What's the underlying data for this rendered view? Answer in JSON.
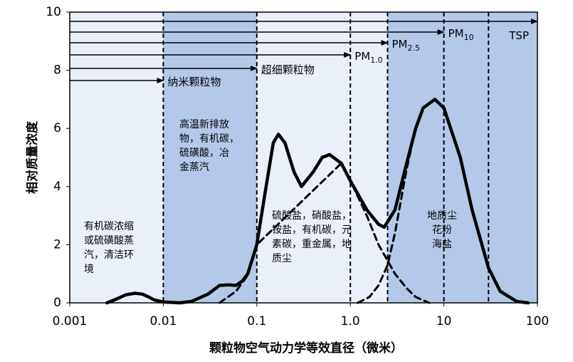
{
  "chart_data": {
    "type": "line",
    "xlabel": "颗粒物空气动力学等效直径（微米）",
    "ylabel": "相对质量浓度",
    "xscale": "log",
    "xlim": [
      0.001,
      100
    ],
    "ylim": [
      0,
      10
    ],
    "xticks": [
      0.001,
      0.01,
      0.1,
      {
        "value": 1,
        "label": "1.0"
      },
      10,
      100
    ],
    "yticks": [
      0,
      2,
      4,
      6,
      8,
      10
    ],
    "background_color": "#eaf0f9",
    "shaded": [
      {
        "from": 0.01,
        "to": 0.1,
        "color": "#b4c9ea"
      },
      {
        "from": 2.5,
        "to": 100,
        "color": "#b4c9ea"
      }
    ],
    "boundaries": [
      0.01,
      0.1,
      1,
      2.5,
      10,
      30
    ],
    "size_classes": [
      {
        "name": "纳米颗粒物",
        "upper": 0.01
      },
      {
        "name": "超细颗粒物",
        "upper": 0.1
      },
      {
        "name": "PM",
        "sub": "1.0",
        "upper": 1
      },
      {
        "name": "PM",
        "sub": "2.5",
        "upper": 2.5
      },
      {
        "name": "PM",
        "sub": "10",
        "upper": 10
      },
      {
        "name": "TSP",
        "upper": 100
      }
    ],
    "annotations": [
      [
        "有机碳浓缩",
        "或硫磺酸蒸",
        "汽，清洁环",
        "境"
      ],
      [
        "高温新排放",
        "物，有机碳，",
        "硫磺酸，冶",
        "金蒸汽"
      ],
      [
        "硫酸盐，硝酸盐，",
        "铵盐，有机碳，元",
        "素碳，重金属，地",
        "质尘"
      ],
      [
        "地质尘",
        "花粉",
        "海盐"
      ]
    ],
    "series": [
      {
        "color": "#000000",
        "style": "solid",
        "x": [
          0.0025,
          0.003,
          0.004,
          0.005,
          0.006,
          0.007,
          0.008,
          0.01,
          0.015,
          0.02,
          0.03,
          0.04,
          0.05,
          0.06,
          0.07,
          0.08,
          0.1,
          0.12,
          0.15,
          0.17,
          0.2,
          0.25,
          0.3,
          0.4,
          0.5,
          0.6,
          0.8,
          1,
          1.5,
          2,
          2.3,
          3,
          4,
          5,
          6,
          8,
          10,
          15,
          20,
          30,
          40,
          60,
          80
        ],
        "values": [
          0,
          0.1,
          0.28,
          0.33,
          0.3,
          0.2,
          0.1,
          0.03,
          0,
          0.05,
          0.3,
          0.6,
          0.62,
          0.6,
          0.75,
          1.0,
          2.0,
          3.6,
          5.5,
          5.8,
          5.5,
          4.5,
          4.0,
          4.5,
          5.0,
          5.1,
          4.8,
          4.2,
          3.2,
          2.7,
          2.6,
          3.2,
          4.8,
          6.0,
          6.7,
          7.0,
          6.7,
          5.0,
          3.2,
          1.2,
          0.4,
          0.05,
          0
        ]
      },
      {
        "color": "#000000",
        "style": "dashed",
        "x": [
          0.04,
          0.06,
          0.08,
          0.1,
          0.8,
          1,
          1.5,
          2,
          3,
          4,
          5,
          7
        ],
        "values": [
          0,
          0.4,
          0.95,
          2.0,
          4.8,
          4.2,
          3.0,
          2.0,
          1.0,
          0.5,
          0.2,
          0
        ]
      },
      {
        "color": "#000000",
        "style": "dashed",
        "x": [
          1.2,
          1.6,
          2,
          2.5,
          3,
          4,
          5
        ],
        "values": [
          0,
          0.2,
          0.6,
          1.3,
          2.4,
          4.6,
          6.0
        ]
      }
    ]
  }
}
